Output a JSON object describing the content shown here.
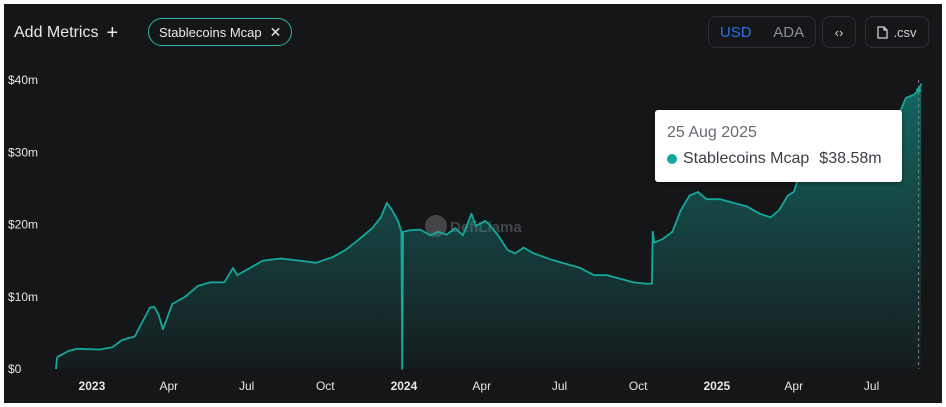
{
  "toolbar": {
    "add_metrics_label": "Add Metrics",
    "add_icon": "plus-icon",
    "metric_chip_label": "Stablecoins Mcap",
    "chip_close_icon": "close-icon",
    "currency_options": [
      "USD",
      "ADA"
    ],
    "currency_selected": "USD",
    "embed_icon": "code-icon",
    "csv_label": ".csv",
    "csv_icon": "file-icon"
  },
  "watermark": "DefiLlama",
  "tooltip": {
    "date": "25 Aug 2025",
    "series": "Stablecoins Mcap",
    "value": "$38.58m"
  },
  "colors": {
    "background": "#151618",
    "series": "#14a89c",
    "selected_currency": "#2f6fe4"
  },
  "chart_data": {
    "type": "area",
    "title": "",
    "xlabel": "",
    "ylabel": "",
    "ylim": [
      0,
      40
    ],
    "y_ticks": [
      0,
      10,
      20,
      30,
      40
    ],
    "y_tick_labels": [
      "$0",
      "$10m",
      "$20m",
      "$30m",
      "$40m"
    ],
    "x_tick_dates": [
      "2023-01-01",
      "2023-04-01",
      "2023-07-01",
      "2023-10-01",
      "2024-01-01",
      "2024-04-01",
      "2024-07-01",
      "2024-10-01",
      "2025-01-01",
      "2025-04-01",
      "2025-07-01"
    ],
    "x_tick_labels": [
      "2023",
      "Apr",
      "Jul",
      "Oct",
      "2024",
      "Apr",
      "Jul",
      "Oct",
      "2025",
      "Apr",
      "Jul"
    ],
    "x_tick_bold": [
      true,
      false,
      false,
      false,
      true,
      false,
      false,
      false,
      true,
      false,
      false
    ],
    "x_range": [
      "2022-11-20",
      "2025-09-05"
    ],
    "grid": false,
    "legend": "none",
    "series": [
      {
        "name": "Stablecoins Mcap",
        "x": [
          "2022-11-20",
          "2022-11-21",
          "2022-11-22",
          "2022-12-05",
          "2022-12-15",
          "2023-01-10",
          "2023-01-25",
          "2023-02-05",
          "2023-02-20",
          "2023-03-01",
          "2023-03-10",
          "2023-03-15",
          "2023-03-20",
          "2023-03-25",
          "2023-04-05",
          "2023-04-20",
          "2023-05-05",
          "2023-05-20",
          "2023-06-05",
          "2023-06-15",
          "2023-06-20",
          "2023-07-05",
          "2023-07-20",
          "2023-08-10",
          "2023-09-01",
          "2023-09-20",
          "2023-10-10",
          "2023-10-25",
          "2023-11-10",
          "2023-11-25",
          "2023-12-05",
          "2023-12-12",
          "2023-12-18",
          "2023-12-25",
          "2023-12-29",
          "2023-12-30",
          "2023-12-31",
          "2024-01-08",
          "2024-01-20",
          "2024-02-01",
          "2024-02-10",
          "2024-02-20",
          "2024-03-01",
          "2024-03-10",
          "2024-03-20",
          "2024-03-25",
          "2024-04-05",
          "2024-04-10",
          "2024-04-20",
          "2024-05-01",
          "2024-05-10",
          "2024-05-20",
          "2024-06-01",
          "2024-06-20",
          "2024-07-10",
          "2024-07-25",
          "2024-08-10",
          "2024-08-25",
          "2024-09-10",
          "2024-09-25",
          "2024-10-10",
          "2024-10-17",
          "2024-10-18",
          "2024-10-20",
          "2024-10-30",
          "2024-11-10",
          "2024-11-20",
          "2024-11-30",
          "2024-12-10",
          "2024-12-20",
          "2025-01-05",
          "2025-01-20",
          "2025-02-05",
          "2025-02-20",
          "2025-03-05",
          "2025-03-15",
          "2025-03-25",
          "2025-04-01",
          "2025-04-05",
          "2025-04-10",
          "2025-04-15",
          "2025-08-01",
          "2025-08-10",
          "2025-08-20",
          "2025-08-25",
          "2025-08-28"
        ],
        "values": [
          0.0,
          1.5,
          1.7,
          2.5,
          2.8,
          2.7,
          3.0,
          4.0,
          4.5,
          6.5,
          8.5,
          8.6,
          7.5,
          5.5,
          9.0,
          10.0,
          11.5,
          12.0,
          12.0,
          14.0,
          13.0,
          14.0,
          15.0,
          15.3,
          15.0,
          14.7,
          15.5,
          16.5,
          18.0,
          19.5,
          21.0,
          23.0,
          22.0,
          20.5,
          19.0,
          0.0,
          19.0,
          19.2,
          19.3,
          18.5,
          19.0,
          18.6,
          19.5,
          18.5,
          21.5,
          19.8,
          20.5,
          20.0,
          18.5,
          16.5,
          16.0,
          16.8,
          16.0,
          15.2,
          14.5,
          14.0,
          13.0,
          13.0,
          12.5,
          12.0,
          11.8,
          11.8,
          19.0,
          17.5,
          18.0,
          19.0,
          22.0,
          24.0,
          24.5,
          23.5,
          23.5,
          23.0,
          22.5,
          21.5,
          21.0,
          22.0,
          24.0,
          24.5,
          26.0,
          30.0,
          31.0,
          35.0,
          37.5,
          38.0,
          38.58,
          39.5
        ]
      }
    ]
  }
}
